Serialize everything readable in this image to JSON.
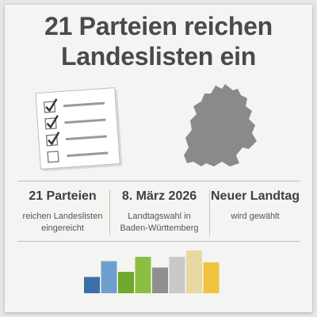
{
  "title": {
    "line1": "21 Parteien reichen",
    "line2": "Landeslisten ein"
  },
  "checklist": {
    "items": [
      {
        "checked": true
      },
      {
        "checked": true
      },
      {
        "checked": true
      },
      {
        "checked": false
      }
    ]
  },
  "map": {
    "icon": "baden-wuerttemberg-map-icon",
    "color": "#8a8a8a"
  },
  "stats": [
    {
      "headline": "21 Parteien",
      "caption_line1": "reichen Landeslisten",
      "caption_line2": "eingereicht"
    },
    {
      "headline": "8. März 2026",
      "caption_line1": "Landtagswahl in",
      "caption_line2": "Baden-Württemberg"
    },
    {
      "headline": "Neuer Landtag",
      "caption_line1": "wird gewählt",
      "caption_line2": ""
    }
  ],
  "bars": {
    "heights": [
      0.38,
      0.75,
      0.5,
      0.85,
      0.6,
      0.85,
      1.0,
      0.72
    ],
    "colors": [
      "#3a6fa8",
      "#6ea0cf",
      "#6fa82c",
      "#8cbe3f",
      "#8f8f8f",
      "#c9c9c9",
      "#e6d9a3",
      "#f0c23e"
    ]
  },
  "colors": {
    "title": "#4a4a4a",
    "card": "#f4f4f2"
  }
}
